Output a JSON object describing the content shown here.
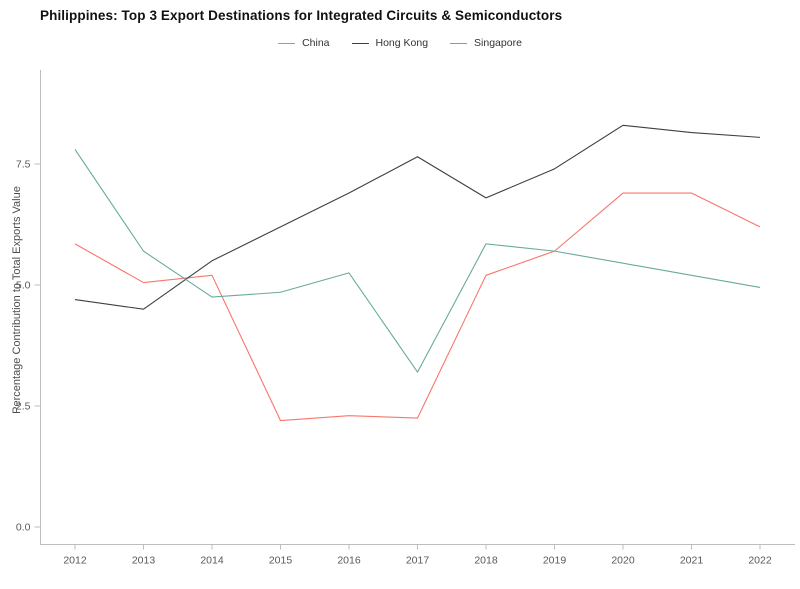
{
  "chart_data": {
    "type": "line",
    "title": "Philippines: Top 3 Export Destinations for Integrated Circuits & Semiconductors",
    "xlabel": "",
    "ylabel": "Percentage Contribution to Total Exports Value",
    "x": [
      2012,
      2013,
      2014,
      2015,
      2016,
      2017,
      2018,
      2019,
      2020,
      2021,
      2022
    ],
    "series": [
      {
        "name": "China",
        "color": "#f8766d",
        "values": [
          5.85,
          5.05,
          5.2,
          2.2,
          2.3,
          2.25,
          5.2,
          5.7,
          6.9,
          6.9,
          6.2
        ]
      },
      {
        "name": "Hong Kong",
        "color": "#3f3f3f",
        "values": [
          4.7,
          4.5,
          5.5,
          6.2,
          6.9,
          7.65,
          6.8,
          7.4,
          8.3,
          8.15,
          8.05
        ]
      },
      {
        "name": "Singapore",
        "color": "#69aa9b",
        "values": [
          7.8,
          5.7,
          4.75,
          4.85,
          5.25,
          3.2,
          5.85,
          5.7,
          5.45,
          5.2,
          4.95
        ]
      }
    ],
    "yticks": [
      0.0,
      2.5,
      5.0,
      7.5
    ],
    "ytick_labels": [
      "0.0",
      "2.5",
      "5.0",
      "7.5"
    ],
    "xtick_labels": [
      "2012",
      "2013",
      "2014",
      "2015",
      "2016",
      "2017",
      "2018",
      "2019",
      "2020",
      "2021",
      "2022"
    ],
    "ylim": [
      -0.4,
      9.4
    ],
    "grid": false,
    "legend_position": "top-center",
    "axis_color": "#bdbdbd",
    "tick_label_color": "#595959",
    "background_color": "#ffffff"
  }
}
